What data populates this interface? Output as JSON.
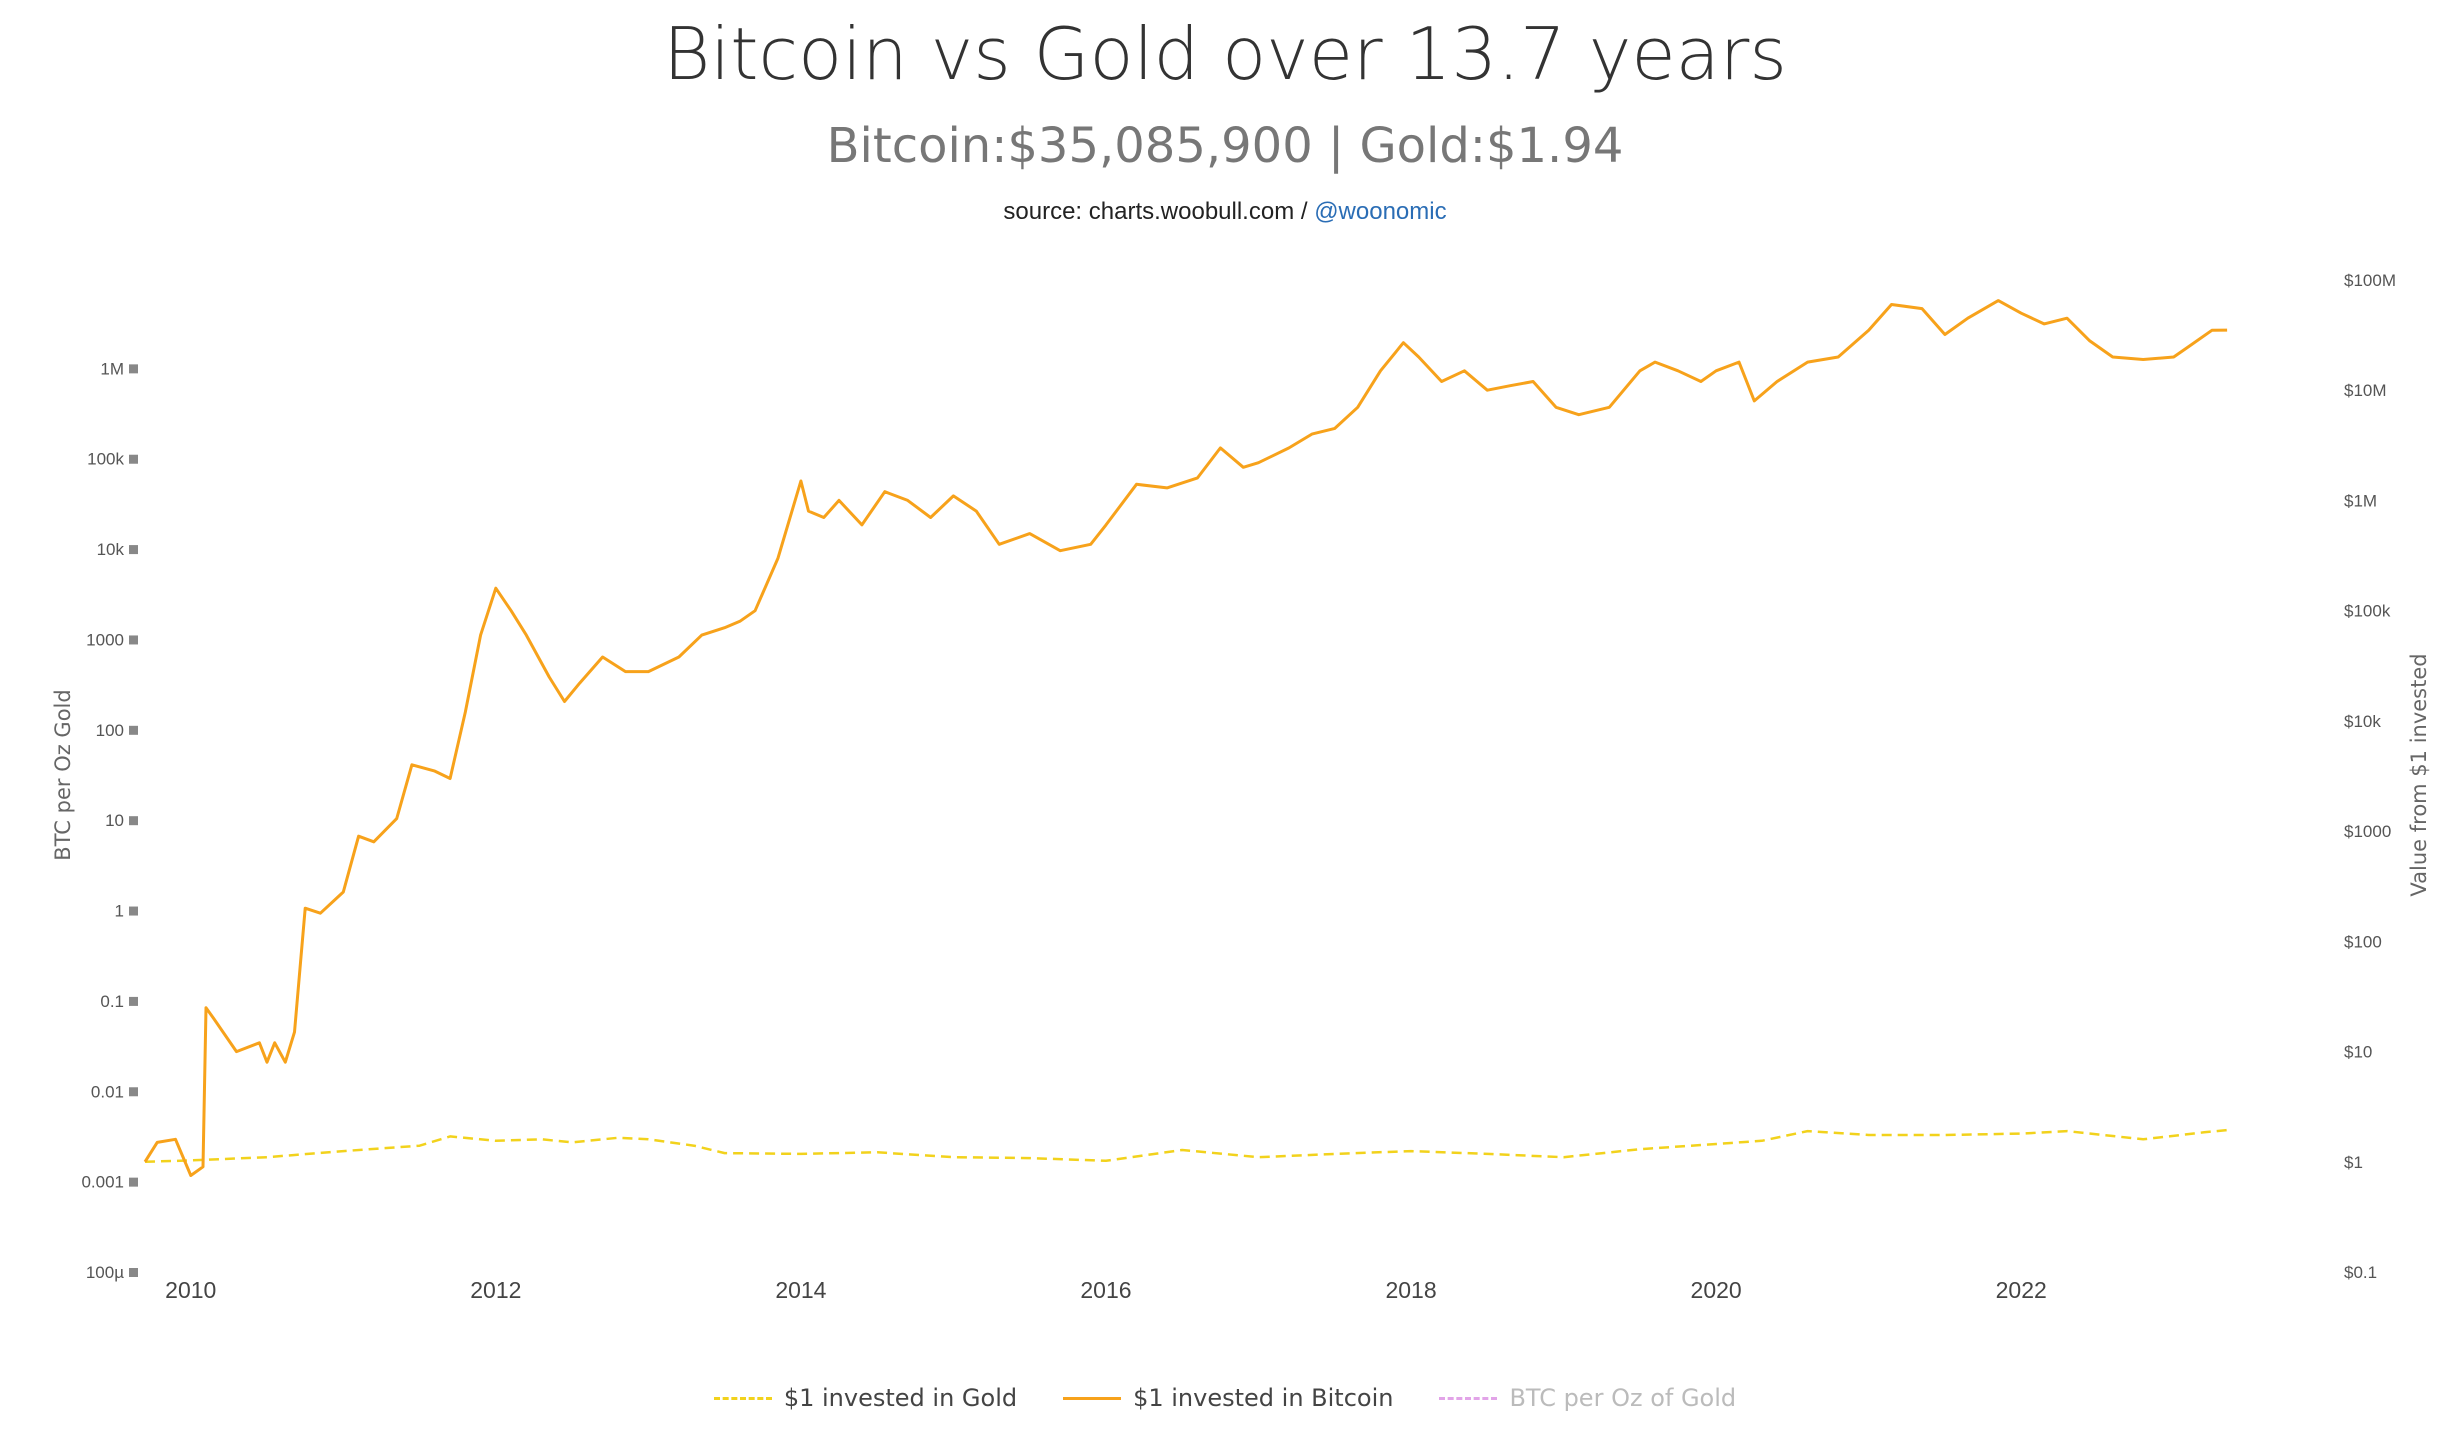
{
  "title": "Bitcoin vs Gold over 13.7 years",
  "subtitle": "Bitcoin:$35,085,900 | Gold:$1.94",
  "source": {
    "prefix": "source: charts.woobull.com /",
    "handle": "@woonomic"
  },
  "chart_data": {
    "type": "line",
    "x_range": [
      2009.7,
      2023.5
    ],
    "x_ticks": [
      "2010",
      "2012",
      "2014",
      "2016",
      "2018",
      "2020",
      "2022"
    ],
    "left_axis": {
      "label": "BTC per Oz Gold",
      "scale": "log",
      "range": [
        0.0001,
        10000000
      ],
      "tick_labels": [
        "100µ",
        "0.001",
        "0.01",
        "0.1",
        "1",
        "10",
        "100",
        "1000",
        "10k",
        "100k",
        "1M"
      ]
    },
    "right_axis": {
      "label": "Value from $1 invested",
      "scale": "log",
      "range": [
        0.1,
        100000000
      ],
      "tick_labels": [
        "$0.1",
        "$1",
        "$10",
        "$100",
        "$1000",
        "$10k",
        "$100k",
        "$1M",
        "$10M",
        "$100M"
      ]
    },
    "legend_position": "bottom-center",
    "series": [
      {
        "name": "$1 invested in Gold",
        "axis": "right",
        "style": "dashed",
        "color": "#f2d21c",
        "points": [
          [
            2009.7,
            1.0
          ],
          [
            2010.0,
            1.03
          ],
          [
            2010.5,
            1.1
          ],
          [
            2011.0,
            1.25
          ],
          [
            2011.5,
            1.4
          ],
          [
            2011.7,
            1.7
          ],
          [
            2012.0,
            1.55
          ],
          [
            2012.3,
            1.6
          ],
          [
            2012.5,
            1.5
          ],
          [
            2012.8,
            1.65
          ],
          [
            2013.0,
            1.6
          ],
          [
            2013.3,
            1.4
          ],
          [
            2013.5,
            1.2
          ],
          [
            2014.0,
            1.18
          ],
          [
            2014.5,
            1.22
          ],
          [
            2015.0,
            1.1
          ],
          [
            2015.5,
            1.08
          ],
          [
            2016.0,
            1.02
          ],
          [
            2016.5,
            1.28
          ],
          [
            2017.0,
            1.1
          ],
          [
            2017.5,
            1.18
          ],
          [
            2018.0,
            1.25
          ],
          [
            2018.5,
            1.18
          ],
          [
            2019.0,
            1.1
          ],
          [
            2019.5,
            1.3
          ],
          [
            2020.0,
            1.45
          ],
          [
            2020.3,
            1.55
          ],
          [
            2020.6,
            1.9
          ],
          [
            2021.0,
            1.75
          ],
          [
            2021.5,
            1.75
          ],
          [
            2022.0,
            1.8
          ],
          [
            2022.3,
            1.9
          ],
          [
            2022.8,
            1.6
          ],
          [
            2023.2,
            1.85
          ],
          [
            2023.35,
            1.94
          ]
        ]
      },
      {
        "name": "$1 invested in Bitcoin",
        "axis": "right",
        "style": "solid",
        "color": "#f7a21b",
        "points": [
          [
            2009.7,
            1.0
          ],
          [
            2009.78,
            1.5
          ],
          [
            2009.9,
            1.6
          ],
          [
            2010.0,
            0.75
          ],
          [
            2010.08,
            0.9
          ],
          [
            2010.1,
            25
          ],
          [
            2010.15,
            20
          ],
          [
            2010.3,
            10
          ],
          [
            2010.45,
            12
          ],
          [
            2010.5,
            8
          ],
          [
            2010.55,
            12
          ],
          [
            2010.62,
            8
          ],
          [
            2010.68,
            15
          ],
          [
            2010.75,
            200
          ],
          [
            2010.85,
            180
          ],
          [
            2011.0,
            280
          ],
          [
            2011.1,
            900
          ],
          [
            2011.2,
            800
          ],
          [
            2011.35,
            1300
          ],
          [
            2011.45,
            4000
          ],
          [
            2011.6,
            3500
          ],
          [
            2011.7,
            3000
          ],
          [
            2011.8,
            12000
          ],
          [
            2011.9,
            60000
          ],
          [
            2012.0,
            160000
          ],
          [
            2012.1,
            100000
          ],
          [
            2012.2,
            60000
          ],
          [
            2012.35,
            25000
          ],
          [
            2012.45,
            15000
          ],
          [
            2012.55,
            22000
          ],
          [
            2012.7,
            38000
          ],
          [
            2012.85,
            28000
          ],
          [
            2013.0,
            28000
          ],
          [
            2013.2,
            38000
          ],
          [
            2013.35,
            60000
          ],
          [
            2013.5,
            70000
          ],
          [
            2013.6,
            80000
          ],
          [
            2013.7,
            100000
          ],
          [
            2013.85,
            300000
          ],
          [
            2014.0,
            1500000
          ],
          [
            2014.05,
            800000
          ],
          [
            2014.15,
            700000
          ],
          [
            2014.25,
            1000000
          ],
          [
            2014.4,
            600000
          ],
          [
            2014.55,
            1200000
          ],
          [
            2014.7,
            1000000
          ],
          [
            2014.85,
            700000
          ],
          [
            2015.0,
            1100000
          ],
          [
            2015.15,
            800000
          ],
          [
            2015.3,
            400000
          ],
          [
            2015.5,
            500000
          ],
          [
            2015.7,
            350000
          ],
          [
            2015.9,
            400000
          ],
          [
            2016.0,
            600000
          ],
          [
            2016.2,
            1400000
          ],
          [
            2016.4,
            1300000
          ],
          [
            2016.6,
            1600000
          ],
          [
            2016.75,
            3000000
          ],
          [
            2016.9,
            2000000
          ],
          [
            2017.0,
            2200000
          ],
          [
            2017.2,
            3000000
          ],
          [
            2017.35,
            4000000
          ],
          [
            2017.5,
            4500000
          ],
          [
            2017.65,
            7000000
          ],
          [
            2017.8,
            15000000
          ],
          [
            2017.95,
            27000000
          ],
          [
            2018.05,
            20000000
          ],
          [
            2018.2,
            12000000
          ],
          [
            2018.35,
            15000000
          ],
          [
            2018.5,
            10000000
          ],
          [
            2018.65,
            11000000
          ],
          [
            2018.8,
            12000000
          ],
          [
            2018.95,
            7000000
          ],
          [
            2019.1,
            6000000
          ],
          [
            2019.3,
            7000000
          ],
          [
            2019.5,
            15000000
          ],
          [
            2019.6,
            18000000
          ],
          [
            2019.75,
            15000000
          ],
          [
            2019.9,
            12000000
          ],
          [
            2020.0,
            15000000
          ],
          [
            2020.15,
            18000000
          ],
          [
            2020.25,
            8000000
          ],
          [
            2020.4,
            12000000
          ],
          [
            2020.6,
            18000000
          ],
          [
            2020.8,
            20000000
          ],
          [
            2021.0,
            35000000
          ],
          [
            2021.15,
            60000000
          ],
          [
            2021.35,
            55000000
          ],
          [
            2021.5,
            32000000
          ],
          [
            2021.65,
            45000000
          ],
          [
            2021.85,
            65000000
          ],
          [
            2022.0,
            50000000
          ],
          [
            2022.15,
            40000000
          ],
          [
            2022.3,
            45000000
          ],
          [
            2022.45,
            28000000
          ],
          [
            2022.6,
            20000000
          ],
          [
            2022.8,
            19000000
          ],
          [
            2023.0,
            20000000
          ],
          [
            2023.1,
            25000000
          ],
          [
            2023.25,
            35000000
          ],
          [
            2023.35,
            35085900
          ]
        ]
      },
      {
        "name": "BTC per Oz of Gold",
        "axis": "left",
        "style": "dashed",
        "color": "#e2a4e8",
        "hidden": true,
        "points": []
      }
    ]
  }
}
